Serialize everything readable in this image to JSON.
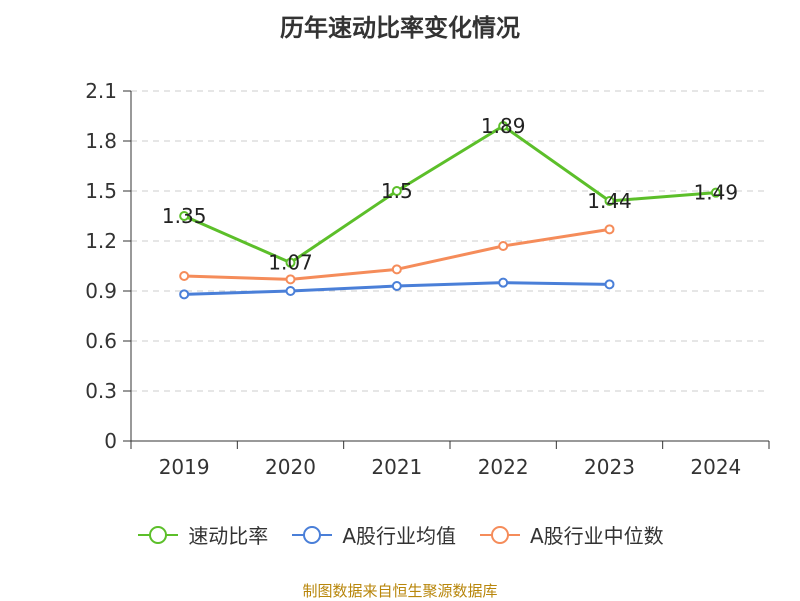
{
  "chart_data": {
    "type": "line",
    "title": "历年速动比率变化情况",
    "categories": [
      "2019",
      "2020",
      "2021",
      "2022",
      "2023",
      "2024"
    ],
    "ylim": [
      0,
      2.1
    ],
    "yticks": [
      "0",
      "0.3",
      "0.6",
      "0.9",
      "1.2",
      "1.5",
      "1.8",
      "2.1"
    ],
    "grid": true,
    "legend_position": "bottom",
    "series": [
      {
        "name": "速动比率",
        "color": "#5cbf2a",
        "values": [
          1.35,
          1.07,
          1.5,
          1.89,
          1.44,
          1.49
        ],
        "labels": [
          "1.35",
          "1.07",
          "1.5",
          "1.89",
          "1.44",
          "1.49"
        ]
      },
      {
        "name": "A股行业均值",
        "color": "#4a7fd8",
        "values": [
          0.88,
          0.9,
          0.93,
          0.95,
          0.94,
          null
        ]
      },
      {
        "name": "A股行业中位数",
        "color": "#f58c5a",
        "values": [
          0.99,
          0.97,
          1.03,
          1.17,
          1.27,
          null
        ]
      }
    ]
  },
  "source_note": "制图数据来自恒生聚源数据库"
}
